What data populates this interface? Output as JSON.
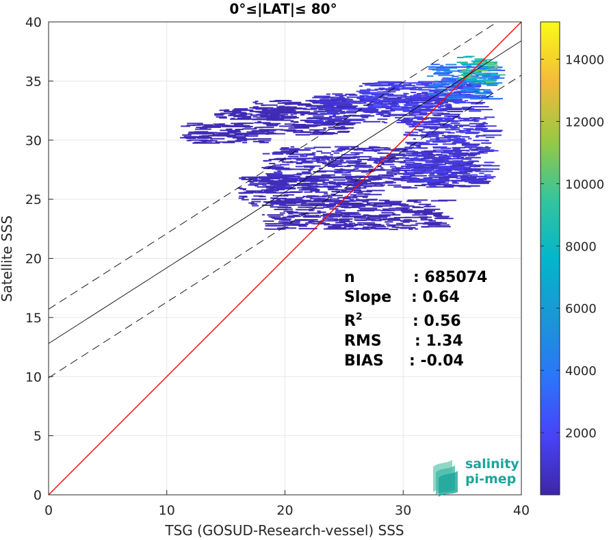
{
  "chart_data": {
    "type": "scatter",
    "title": "0°≤|LAT|≤ 80°",
    "xlabel": "TSG (GOSUD-Research-vessel) SSS",
    "ylabel": "Satellite SSS",
    "xlim": [
      0,
      40
    ],
    "ylim": [
      0,
      40
    ],
    "xticks": [
      "0",
      "10",
      "20",
      "30",
      "40"
    ],
    "yticks": [
      "0",
      "5",
      "10",
      "15",
      "20",
      "25",
      "30",
      "35",
      "40"
    ],
    "grid": true,
    "colorbar": {
      "min": 0,
      "max": 15200,
      "ticks": [
        2000,
        4000,
        6000,
        8000,
        10000,
        12000,
        14000
      ],
      "tick_labels": [
        "2000",
        "4000",
        "6000",
        "8000",
        "10000",
        "12000",
        "14000"
      ],
      "colormap": "parula"
    },
    "identity_line": {
      "x": [
        0,
        40
      ],
      "y": [
        0,
        40
      ],
      "color": "#ff0000"
    },
    "fit_line": {
      "intercept": 12.8,
      "slope": 0.64
    },
    "confidence_band_offset": 2.9,
    "density_clusters": [
      {
        "x": [
          11,
          18
        ],
        "y": [
          29.8,
          31.5
        ],
        "density": 0.02
      },
      {
        "x": [
          14,
          20
        ],
        "y": [
          31.8,
          32.8
        ],
        "density": 0.02
      },
      {
        "x": [
          17,
          25
        ],
        "y": [
          30.5,
          33.5
        ],
        "density": 0.02
      },
      {
        "x": [
          22,
          34
        ],
        "y": [
          31.5,
          34.0
        ],
        "density": 0.06
      },
      {
        "x": [
          26,
          36
        ],
        "y": [
          32.5,
          35.0
        ],
        "density": 0.1
      },
      {
        "x": [
          18,
          36
        ],
        "y": [
          26.0,
          29.5
        ],
        "density": 0.04
      },
      {
        "x": [
          16,
          27
        ],
        "y": [
          24.5,
          27.0
        ],
        "density": 0.03
      },
      {
        "x": [
          18,
          33
        ],
        "y": [
          22.5,
          25.0
        ],
        "density": 0.02
      },
      {
        "x": [
          30,
          37
        ],
        "y": [
          26.5,
          32.0
        ],
        "density": 0.08
      },
      {
        "x": [
          32,
          37.5
        ],
        "y": [
          33.5,
          36.5
        ],
        "density": 0.25
      },
      {
        "x": [
          34.5,
          37.5
        ],
        "y": [
          34.8,
          37.2
        ],
        "density": 0.55
      }
    ],
    "stats": [
      {
        "label": "n",
        "sup": "",
        "value": ": 685074"
      },
      {
        "label": "Slope",
        "sup": "",
        "value": ": 0.64"
      },
      {
        "label": "R",
        "sup": "2",
        "value": ": 0.56"
      },
      {
        "label": "RMS",
        "sup": "",
        "value": ": 1.34"
      },
      {
        "label": "BIAS",
        "sup": "",
        "value": ": -0.04"
      }
    ]
  },
  "logo": {
    "line1": "salinity",
    "line2": "pi-mep"
  },
  "colors": {
    "identity": "#ff0000",
    "fit": "#000000",
    "grid": "#e6e6e6",
    "logo": "#1aa59a"
  }
}
